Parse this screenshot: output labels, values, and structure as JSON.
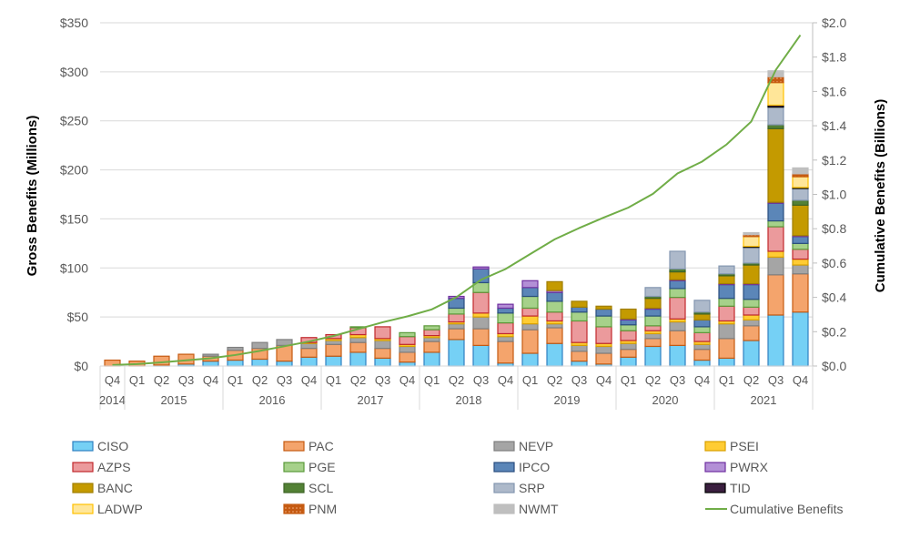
{
  "chart_data": {
    "type": "bar",
    "stacked": true,
    "ylabel": "Gross Benefits (Millions)",
    "y2label": "Cumulative Benefits (Billions)",
    "ylim": [
      0,
      350
    ],
    "y2lim": [
      0,
      2.0
    ],
    "yticks": [
      "$0",
      "$50",
      "$100",
      "$150",
      "$200",
      "$250",
      "$300",
      "$350"
    ],
    "y2ticks": [
      "$0.0",
      "$0.2",
      "$0.4",
      "$0.6",
      "$0.8",
      "$1.0",
      "$1.2",
      "$1.4",
      "$1.6",
      "$1.8",
      "$2.0"
    ],
    "grid": true,
    "legend_position": "bottom",
    "years": [
      {
        "label": "2014",
        "quarters": [
          "Q4"
        ]
      },
      {
        "label": "2015",
        "quarters": [
          "Q1",
          "Q2",
          "Q3",
          "Q4"
        ]
      },
      {
        "label": "2016",
        "quarters": [
          "Q1",
          "Q2",
          "Q3",
          "Q4"
        ]
      },
      {
        "label": "2017",
        "quarters": [
          "Q1",
          "Q2",
          "Q3",
          "Q4"
        ]
      },
      {
        "label": "2018",
        "quarters": [
          "Q1",
          "Q2",
          "Q3",
          "Q4"
        ]
      },
      {
        "label": "2019",
        "quarters": [
          "Q1",
          "Q2",
          "Q3",
          "Q4"
        ]
      },
      {
        "label": "2020",
        "quarters": [
          "Q1",
          "Q2",
          "Q3",
          "Q4"
        ]
      },
      {
        "label": "2021",
        "quarters": [
          "Q1",
          "Q2",
          "Q3",
          "Q4"
        ]
      }
    ],
    "series": [
      {
        "name": "CISO",
        "fill": "#75d0f5",
        "stroke": "#2f80c0",
        "values": [
          0,
          0,
          1,
          2,
          5,
          6,
          7,
          5,
          9,
          10,
          14,
          8,
          4,
          14,
          27,
          21,
          3,
          13,
          23,
          5,
          2,
          9,
          20,
          21,
          6,
          8,
          26,
          52,
          55
        ]
      },
      {
        "name": "PAC",
        "fill": "#f4a46c",
        "stroke": "#c55a11",
        "values": [
          6,
          5,
          9,
          10,
          5,
          10,
          11,
          16,
          9,
          12,
          10,
          10,
          10,
          11,
          11,
          17,
          22,
          24,
          16,
          10,
          11,
          8,
          8,
          15,
          11,
          20,
          15,
          41,
          39
        ]
      },
      {
        "name": "NEVP",
        "fill": "#a5a5a5",
        "stroke": "#7f7f7f",
        "values": [
          0,
          0,
          0,
          0,
          2,
          3,
          6,
          6,
          5,
          4,
          5,
          8,
          6,
          4,
          5,
          12,
          5,
          6,
          4,
          6,
          7,
          6,
          5,
          9,
          5,
          15,
          6,
          18,
          9
        ]
      },
      {
        "name": "PSEI",
        "fill": "#ffcc33",
        "stroke": "#d9a000",
        "values": [
          0,
          0,
          0,
          0,
          0,
          0,
          0,
          0,
          1,
          2,
          3,
          2,
          2,
          2,
          2,
          4,
          3,
          8,
          3,
          3,
          3,
          3,
          3,
          3,
          3,
          3,
          5,
          6,
          6
        ]
      },
      {
        "name": "AZPS",
        "fill": "#eb9a9c",
        "stroke": "#c0282d",
        "values": [
          0,
          0,
          0,
          0,
          0,
          0,
          0,
          0,
          5,
          4,
          7,
          12,
          8,
          6,
          8,
          21,
          11,
          8,
          9,
          22,
          17,
          10,
          5,
          22,
          9,
          15,
          8,
          25,
          10
        ]
      },
      {
        "name": "PGE",
        "fill": "#a6d18a",
        "stroke": "#5b9a3a",
        "values": [
          0,
          0,
          0,
          0,
          0,
          0,
          0,
          0,
          0,
          0,
          1,
          0,
          4,
          4,
          6,
          10,
          10,
          12,
          11,
          9,
          11,
          6,
          10,
          9,
          6,
          8,
          8,
          6,
          6
        ]
      },
      {
        "name": "IPCO",
        "fill": "#5b86b8",
        "stroke": "#2a4e7f",
        "values": [
          0,
          0,
          0,
          0,
          0,
          0,
          0,
          0,
          0,
          0,
          0,
          0,
          0,
          0,
          10,
          14,
          5,
          9,
          9,
          5,
          7,
          5,
          7,
          8,
          7,
          14,
          15,
          18,
          7
        ]
      },
      {
        "name": "PWRX",
        "fill": "#b38fd6",
        "stroke": "#7030a0",
        "values": [
          0,
          0,
          0,
          0,
          0,
          0,
          0,
          0,
          0,
          0,
          0,
          0,
          0,
          0,
          2,
          2,
          4,
          7,
          2,
          0,
          0,
          1,
          1,
          1,
          0,
          1,
          1,
          1,
          1
        ]
      },
      {
        "name": "BANC",
        "fill": "#c49a00",
        "stroke": "#a07e00",
        "values": [
          0,
          0,
          0,
          0,
          0,
          0,
          0,
          0,
          0,
          0,
          0,
          0,
          0,
          0,
          0,
          0,
          0,
          0,
          9,
          6,
          3,
          10,
          10,
          8,
          6,
          8,
          19,
          75,
          31
        ]
      },
      {
        "name": "SCL",
        "fill": "#538135",
        "stroke": "#3d6326",
        "values": [
          0,
          0,
          0,
          0,
          0,
          0,
          0,
          0,
          0,
          0,
          0,
          0,
          0,
          0,
          0,
          0,
          0,
          0,
          0,
          0,
          0,
          0,
          2,
          3,
          2,
          2,
          2,
          4,
          5
        ]
      },
      {
        "name": "SRP",
        "fill": "#adb9ca",
        "stroke": "#8497b0",
        "values": [
          0,
          0,
          0,
          0,
          0,
          0,
          0,
          0,
          0,
          0,
          0,
          0,
          0,
          0,
          0,
          0,
          0,
          0,
          0,
          0,
          0,
          0,
          9,
          18,
          12,
          8,
          16,
          18,
          12
        ]
      },
      {
        "name": "TID",
        "fill": "#3a1f3f",
        "stroke": "#000000",
        "values": [
          0,
          0,
          0,
          0,
          0,
          0,
          0,
          0,
          0,
          0,
          0,
          0,
          0,
          0,
          0,
          0,
          0,
          0,
          0,
          0,
          0,
          0,
          0,
          0,
          0,
          0,
          1,
          2,
          1
        ]
      },
      {
        "name": "LADWP",
        "fill": "#ffe699",
        "stroke": "#ffc000",
        "values": [
          0,
          0,
          0,
          0,
          0,
          0,
          0,
          0,
          0,
          0,
          0,
          0,
          0,
          0,
          0,
          0,
          0,
          0,
          0,
          0,
          0,
          0,
          0,
          0,
          0,
          0,
          10,
          23,
          11
        ]
      },
      {
        "name": "PNM",
        "fill": "#c55a11",
        "stroke": "#c55a11",
        "pattern": "dotted",
        "values": [
          0,
          0,
          0,
          0,
          0,
          0,
          0,
          0,
          0,
          0,
          0,
          0,
          0,
          0,
          0,
          0,
          0,
          0,
          0,
          0,
          0,
          0,
          0,
          0,
          0,
          0,
          2,
          6,
          3
        ]
      },
      {
        "name": "NWMT",
        "fill": "#bfbfbf",
        "stroke": "#bfbfbf",
        "values": [
          0,
          0,
          0,
          0,
          0,
          0,
          0,
          0,
          0,
          0,
          0,
          0,
          0,
          0,
          0,
          0,
          0,
          0,
          0,
          0,
          0,
          0,
          0,
          0,
          0,
          0,
          2,
          6,
          6
        ]
      }
    ],
    "line": {
      "name": "Cumulative Benefits",
      "color": "#70ad47",
      "axis": "right",
      "values": [
        0.006,
        0.011,
        0.021,
        0.033,
        0.045,
        0.064,
        0.088,
        0.115,
        0.143,
        0.175,
        0.215,
        0.255,
        0.289,
        0.33,
        0.401,
        0.502,
        0.565,
        0.652,
        0.738,
        0.804,
        0.865,
        0.923,
        1.003,
        1.122,
        1.191,
        1.291,
        1.424,
        1.725,
        1.928
      ]
    }
  }
}
